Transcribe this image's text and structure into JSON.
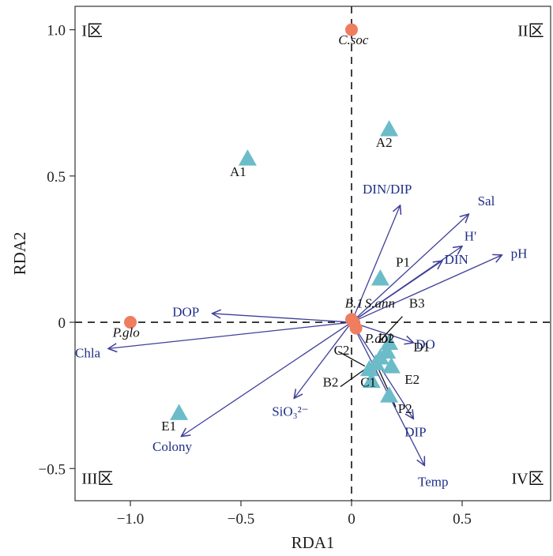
{
  "chart_data": {
    "type": "scatter",
    "xlabel": "RDA1",
    "ylabel": "RDA2",
    "xlim": [
      -1.25,
      0.9
    ],
    "ylim": [
      -0.61,
      1.08
    ],
    "x_ticks": [
      -1.0,
      -0.5,
      0,
      0.5
    ],
    "x_tick_labels": [
      "−1.0",
      "−0.5",
      "0",
      "0.5"
    ],
    "y_ticks": [
      -0.5,
      0,
      0.5,
      1.0
    ],
    "y_tick_labels": [
      "−0.5",
      "0",
      "0.5",
      "1.0"
    ],
    "quadrants": [
      {
        "label": "I区",
        "x": -1.22,
        "y": 1.0,
        "anchor": "start"
      },
      {
        "label": "II区",
        "x": 0.87,
        "y": 1.0,
        "anchor": "end"
      },
      {
        "label": "III区",
        "x": -1.22,
        "y": -0.53,
        "anchor": "start"
      },
      {
        "label": "IV区",
        "x": 0.87,
        "y": -0.53,
        "anchor": "end"
      }
    ],
    "env_color": "#3f3f9a",
    "env_label_color": "#1f2f86",
    "site_color": "#6bbcc8",
    "species_color": "#ef7d5f",
    "species": [
      {
        "name": "C.soc",
        "x": 0.0,
        "y": 1.0,
        "lx": -0.06,
        "ly": 0.95
      },
      {
        "name": "P.glo",
        "x": -1.0,
        "y": 0.0,
        "lx": -1.08,
        "ly": -0.05
      },
      {
        "name": "B.1",
        "x": 0.0,
        "y": 0.01,
        "lx": -0.03,
        "ly": 0.05
      },
      {
        "name": "S.ann",
        "x": 0.01,
        "y": 0.0,
        "lx": 0.06,
        "ly": 0.05
      },
      {
        "name": "P.dol",
        "x": 0.02,
        "y": -0.02,
        "lx": 0.06,
        "ly": -0.07
      }
    ],
    "sites": [
      {
        "name": "A1",
        "x": -0.47,
        "y": 0.56,
        "lx": -0.55,
        "ly": 0.5
      },
      {
        "name": "A2",
        "x": 0.17,
        "y": 0.66,
        "lx": 0.11,
        "ly": 0.6
      },
      {
        "name": "P1",
        "x": 0.13,
        "y": 0.15,
        "lx": 0.2,
        "ly": 0.19
      },
      {
        "name": "B3",
        "x": 0.17,
        "y": -0.07,
        "lx": 0.26,
        "ly": 0.05
      },
      {
        "name": "D1",
        "x": 0.16,
        "y": -0.1,
        "lx": 0.28,
        "ly": -0.1
      },
      {
        "name": "D2",
        "x": 0.13,
        "y": -0.12,
        "lx": 0.12,
        "ly": -0.07
      },
      {
        "name": "C2",
        "x": 0.11,
        "y": -0.14,
        "lx": -0.08,
        "ly": -0.11
      },
      {
        "name": "C1",
        "x": 0.08,
        "y": -0.16,
        "lx": 0.04,
        "ly": -0.22
      },
      {
        "name": "E2",
        "x": 0.18,
        "y": -0.15,
        "lx": 0.24,
        "ly": -0.21
      },
      {
        "name": "B2",
        "x": 0.09,
        "y": -0.2,
        "lx": -0.13,
        "ly": -0.22
      },
      {
        "name": "P2",
        "x": 0.17,
        "y": -0.25,
        "lx": 0.21,
        "ly": -0.31
      },
      {
        "name": "E1",
        "x": -0.78,
        "y": -0.31,
        "lx": -0.86,
        "ly": -0.37
      }
    ],
    "leader_lines": [
      {
        "x1": 0.12,
        "y1": -0.07,
        "x2": 0.23,
        "y2": 0.02
      },
      {
        "x1": -0.06,
        "y1": -0.1,
        "x2": 0.06,
        "y2": -0.15
      },
      {
        "x1": -0.05,
        "y1": -0.22,
        "x2": 0.08,
        "y2": -0.15
      },
      {
        "x1": 0.11,
        "y1": -0.14,
        "x2": 0.2,
        "y2": -0.29
      }
    ],
    "env_vectors": [
      {
        "name": "DIN/DIP",
        "x": 0.22,
        "y": 0.4,
        "lx": 0.05,
        "ly": 0.44
      },
      {
        "name": "Sal",
        "x": 0.53,
        "y": 0.37,
        "lx": 0.57,
        "ly": 0.4
      },
      {
        "name": "H'",
        "x": 0.5,
        "y": 0.26,
        "lx": 0.51,
        "ly": 0.28
      },
      {
        "name": "DIN",
        "x": 0.41,
        "y": 0.21,
        "lx": 0.42,
        "ly": 0.2
      },
      {
        "name": "pH",
        "x": 0.68,
        "y": 0.23,
        "lx": 0.72,
        "ly": 0.22
      },
      {
        "name": "DOP",
        "x": -0.63,
        "y": 0.03,
        "lx": -0.81,
        "ly": 0.02
      },
      {
        "name": "Chla",
        "x": -1.1,
        "y": -0.09,
        "lx": -1.25,
        "ly": -0.12
      },
      {
        "name": "DO",
        "x": 0.28,
        "y": -0.07,
        "lx": 0.29,
        "ly": -0.09
      },
      {
        "name": "SiO₃²⁻",
        "x": -0.26,
        "y": -0.26,
        "lx": -0.36,
        "ly": -0.32
      },
      {
        "name": "DIP",
        "x": 0.28,
        "y": -0.33,
        "lx": 0.24,
        "ly": -0.39
      },
      {
        "name": "Temp",
        "x": 0.33,
        "y": -0.49,
        "lx": 0.3,
        "ly": -0.56
      },
      {
        "name": "Colony",
        "x": -0.77,
        "y": -0.39,
        "lx": -0.9,
        "ly": -0.44
      }
    ]
  }
}
